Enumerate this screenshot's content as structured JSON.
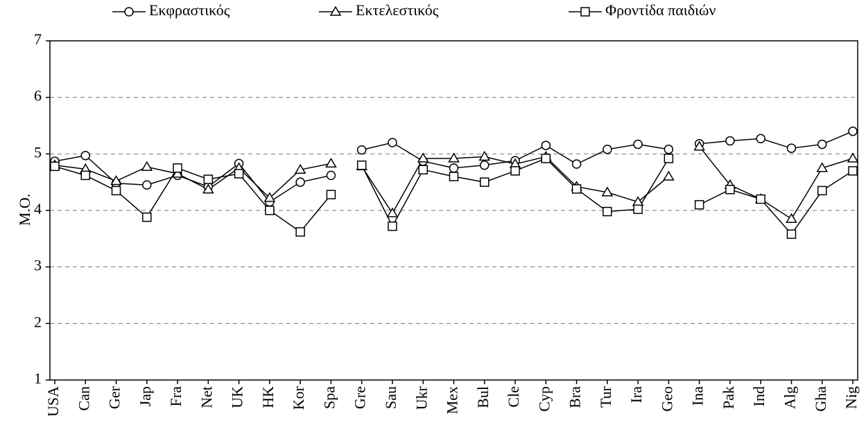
{
  "chart_data": {
    "type": "line",
    "y_label": "M.O.",
    "categories": [
      "USA",
      "Can",
      "Ger",
      "Jap",
      "Fra",
      "Net",
      "UK",
      "HK",
      "Kor",
      "Spa",
      "Gre",
      "Sau",
      "Ukr",
      "Mex",
      "Bul",
      "Cle",
      "Cyp",
      "Bra",
      "Tur",
      "Ira",
      "Geo",
      "Ina",
      "Pak",
      "Ind",
      "Alg",
      "Gha",
      "Nig"
    ],
    "series": [
      {
        "name": "Εκφραστικός",
        "color": "#000000",
        "marker": "circle",
        "values": [
          4.87,
          4.97,
          4.48,
          4.45,
          4.62,
          4.42,
          4.83,
          4.15,
          4.5,
          4.62,
          5.07,
          5.2,
          4.87,
          4.75,
          4.8,
          4.88,
          5.15,
          4.82,
          5.08,
          5.17,
          5.08,
          5.18,
          5.23,
          5.27,
          5.1,
          5.17,
          5.4
        ]
      },
      {
        "name": "Εκτελεστικός",
        "color": "#000000",
        "marker": "triangle",
        "values": [
          4.8,
          4.73,
          4.52,
          4.77,
          4.65,
          4.37,
          4.75,
          4.22,
          4.72,
          4.83,
          4.78,
          3.95,
          4.92,
          4.92,
          4.95,
          4.82,
          4.95,
          4.42,
          4.32,
          4.15,
          4.6,
          5.13,
          4.45,
          4.2,
          3.85,
          4.75,
          4.92
        ]
      },
      {
        "name": "Φροντίδα παιδιών",
        "color": "#000000",
        "marker": "square",
        "values": [
          4.78,
          4.62,
          4.35,
          3.88,
          4.75,
          4.55,
          4.65,
          4.0,
          3.62,
          4.28,
          4.8,
          3.72,
          4.72,
          4.6,
          4.5,
          4.7,
          4.92,
          4.38,
          3.98,
          4.02,
          4.92,
          4.1,
          4.37,
          4.2,
          3.58,
          4.35,
          4.7
        ]
      }
    ],
    "ylim": [
      1,
      7
    ],
    "yticks": [
      1,
      2,
      3,
      4,
      5,
      6,
      7
    ],
    "grid": true,
    "legend": "top"
  }
}
